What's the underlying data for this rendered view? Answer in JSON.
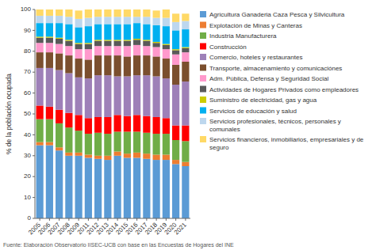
{
  "chart_data": {
    "type": "bar",
    "stacked": true,
    "legend": "right",
    "y_label": "% de la población ocupada",
    "annotations": [
      "Fuente: Elaboración Observatorio IISEC-UCB con base en las Encuestas de Hogares del INE"
    ],
    "categories": [
      "2005",
      "2006",
      "2007",
      "2008",
      "2009",
      "2011",
      "2012",
      "2013",
      "2014",
      "2015",
      "2016",
      "2017",
      "2018",
      "2019",
      "2020",
      "2021"
    ],
    "ylim": [
      0,
      100
    ],
    "yticks": [
      0,
      10,
      20,
      30,
      40,
      50,
      60,
      70,
      80,
      90,
      100
    ],
    "series": [
      {
        "name": "Agricultura Ganaderia Caza Pesca y Silvicultura",
        "color": "#5B9BD5",
        "values": [
          35.0,
          35.0,
          32.5,
          30.0,
          30.0,
          29.0,
          28.5,
          28.0,
          30.0,
          29.0,
          29.0,
          28.5,
          28.0,
          28.0,
          26.0,
          25.0
        ]
      },
      {
        "name": " Explotación de Minas y Canteras",
        "color": "#ED7D31",
        "values": [
          1.5,
          1.5,
          1.5,
          1.5,
          1.5,
          1.5,
          1.5,
          2.0,
          2.0,
          2.0,
          2.5,
          2.5,
          2.5,
          2.5,
          2.0,
          2.0
        ]
      },
      {
        "name": "Industria Manufacturera",
        "color": "#70AD47",
        "values": [
          11.0,
          11.0,
          11.5,
          12.0,
          10.5,
          10.0,
          11.0,
          10.5,
          9.5,
          10.5,
          10.0,
          10.0,
          10.0,
          10.0,
          9.5,
          10.0
        ]
      },
      {
        "name": "Construcción",
        "color": "#FF0000",
        "values": [
          6.5,
          6.0,
          6.5,
          7.0,
          7.5,
          7.5,
          7.5,
          8.0,
          8.0,
          7.5,
          8.0,
          8.0,
          8.0,
          7.5,
          7.0,
          7.5
        ]
      },
      {
        "name": "Comercio, hoteles y restaurantes",
        "color": "#9E80B8",
        "values": [
          18.0,
          18.5,
          19.0,
          19.0,
          18.0,
          19.0,
          20.0,
          20.0,
          18.5,
          19.0,
          19.0,
          19.5,
          19.5,
          19.0,
          19.5,
          21.0
        ]
      },
      {
        "name": "Transporte, almacenamiento y comunicaciónes",
        "color": "#7B4F2E",
        "values": [
          7.5,
          7.5,
          8.0,
          8.5,
          9.0,
          9.0,
          9.5,
          9.5,
          10.0,
          9.5,
          9.5,
          9.5,
          9.5,
          9.5,
          9.5,
          9.5
        ]
      },
      {
        "name": "Adm. Pública, Defensa y Seguridad Social",
        "color": "#FF99CC",
        "values": [
          4.5,
          4.5,
          4.5,
          4.5,
          4.5,
          5.0,
          4.5,
          4.5,
          4.5,
          5.0,
          5.0,
          4.5,
          4.5,
          4.5,
          5.0,
          4.5
        ]
      },
      {
        "name": "Actividades de Hogares Privados como empleadores",
        "color": "#595959",
        "values": [
          2.5,
          2.5,
          2.5,
          2.5,
          2.5,
          2.5,
          2.5,
          2.5,
          2.5,
          2.5,
          2.5,
          2.5,
          2.0,
          2.0,
          2.0,
          2.0
        ]
      },
      {
        "name": "Suministro de electricidad, gas y agua",
        "color": "#CCCC00",
        "values": [
          0.5,
          0.5,
          0.5,
          0.5,
          0.5,
          0.5,
          0.5,
          0.5,
          0.5,
          0.5,
          0.5,
          0.5,
          0.5,
          0.5,
          0.5,
          0.5
        ]
      },
      {
        "name": "Servicios de educación y salud",
        "color": "#00B0F0",
        "values": [
          6.5,
          6.5,
          7.0,
          7.5,
          7.5,
          8.0,
          7.5,
          7.5,
          7.5,
          7.5,
          7.5,
          7.5,
          8.0,
          8.5,
          9.0,
          8.5
        ]
      },
      {
        "name": "Servicios profesionales, técnicos, personales y comunales",
        "color": "#BDD7EE",
        "values": [
          3.5,
          3.5,
          3.5,
          3.5,
          4.0,
          4.0,
          3.5,
          3.5,
          3.5,
          3.5,
          3.0,
          3.5,
          3.5,
          4.0,
          4.0,
          4.0
        ]
      },
      {
        "name": "Servicios financieros, inmobiliarios, empresariales y de seguro",
        "color": "#FFD966",
        "values": [
          3.0,
          3.0,
          3.0,
          3.5,
          4.0,
          4.0,
          3.5,
          3.5,
          3.5,
          3.5,
          3.5,
          3.5,
          3.5,
          4.0,
          4.0,
          3.5
        ]
      }
    ]
  }
}
